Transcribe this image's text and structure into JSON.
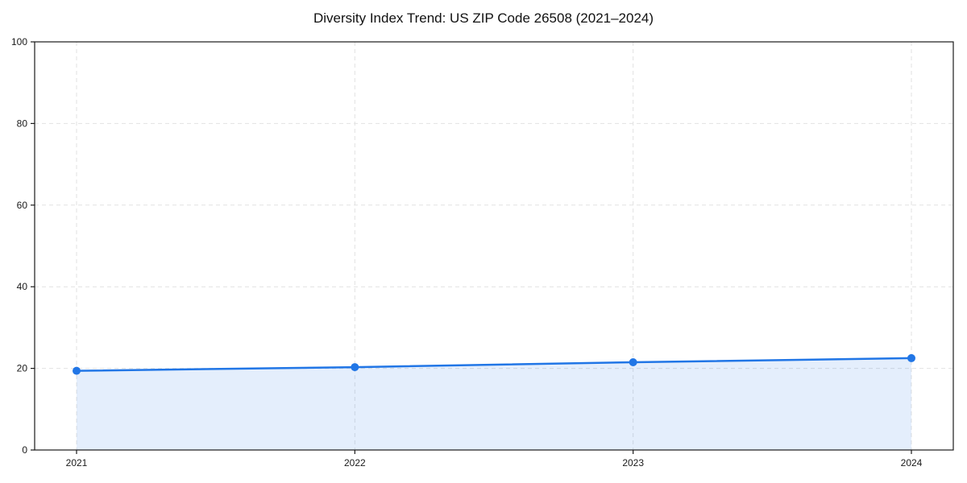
{
  "page": {
    "background": "#ffffff"
  },
  "chart_data": {
    "type": "line",
    "title": "Diversity Index Trend: US ZIP Code 26508 (2021–2024)",
    "x": [
      "2021",
      "2022",
      "2023",
      "2024"
    ],
    "series": [
      {
        "name": "Diversity Index",
        "values": [
          19.4,
          20.3,
          21.5,
          22.5
        ]
      }
    ],
    "xlabel": "",
    "ylabel": "",
    "ylim": [
      0,
      100
    ],
    "yticks": [
      0,
      20,
      40,
      60,
      80,
      100
    ],
    "xticklabels": [
      "2021",
      "2022",
      "2023",
      "2024"
    ],
    "grid": true,
    "grid_style": "dashed",
    "legend": false,
    "legend_position": "none",
    "area_fill": true,
    "markers": true,
    "colors": {
      "line": "#2176e6",
      "marker": "#2176e6",
      "area": "rgba(33, 118, 230, 0.12)",
      "grid": "#e2e2e2",
      "spine": "#1a1a1a",
      "tick_text": "#1a1a1a",
      "title_text": "#111111",
      "background": "#ffffff"
    }
  }
}
